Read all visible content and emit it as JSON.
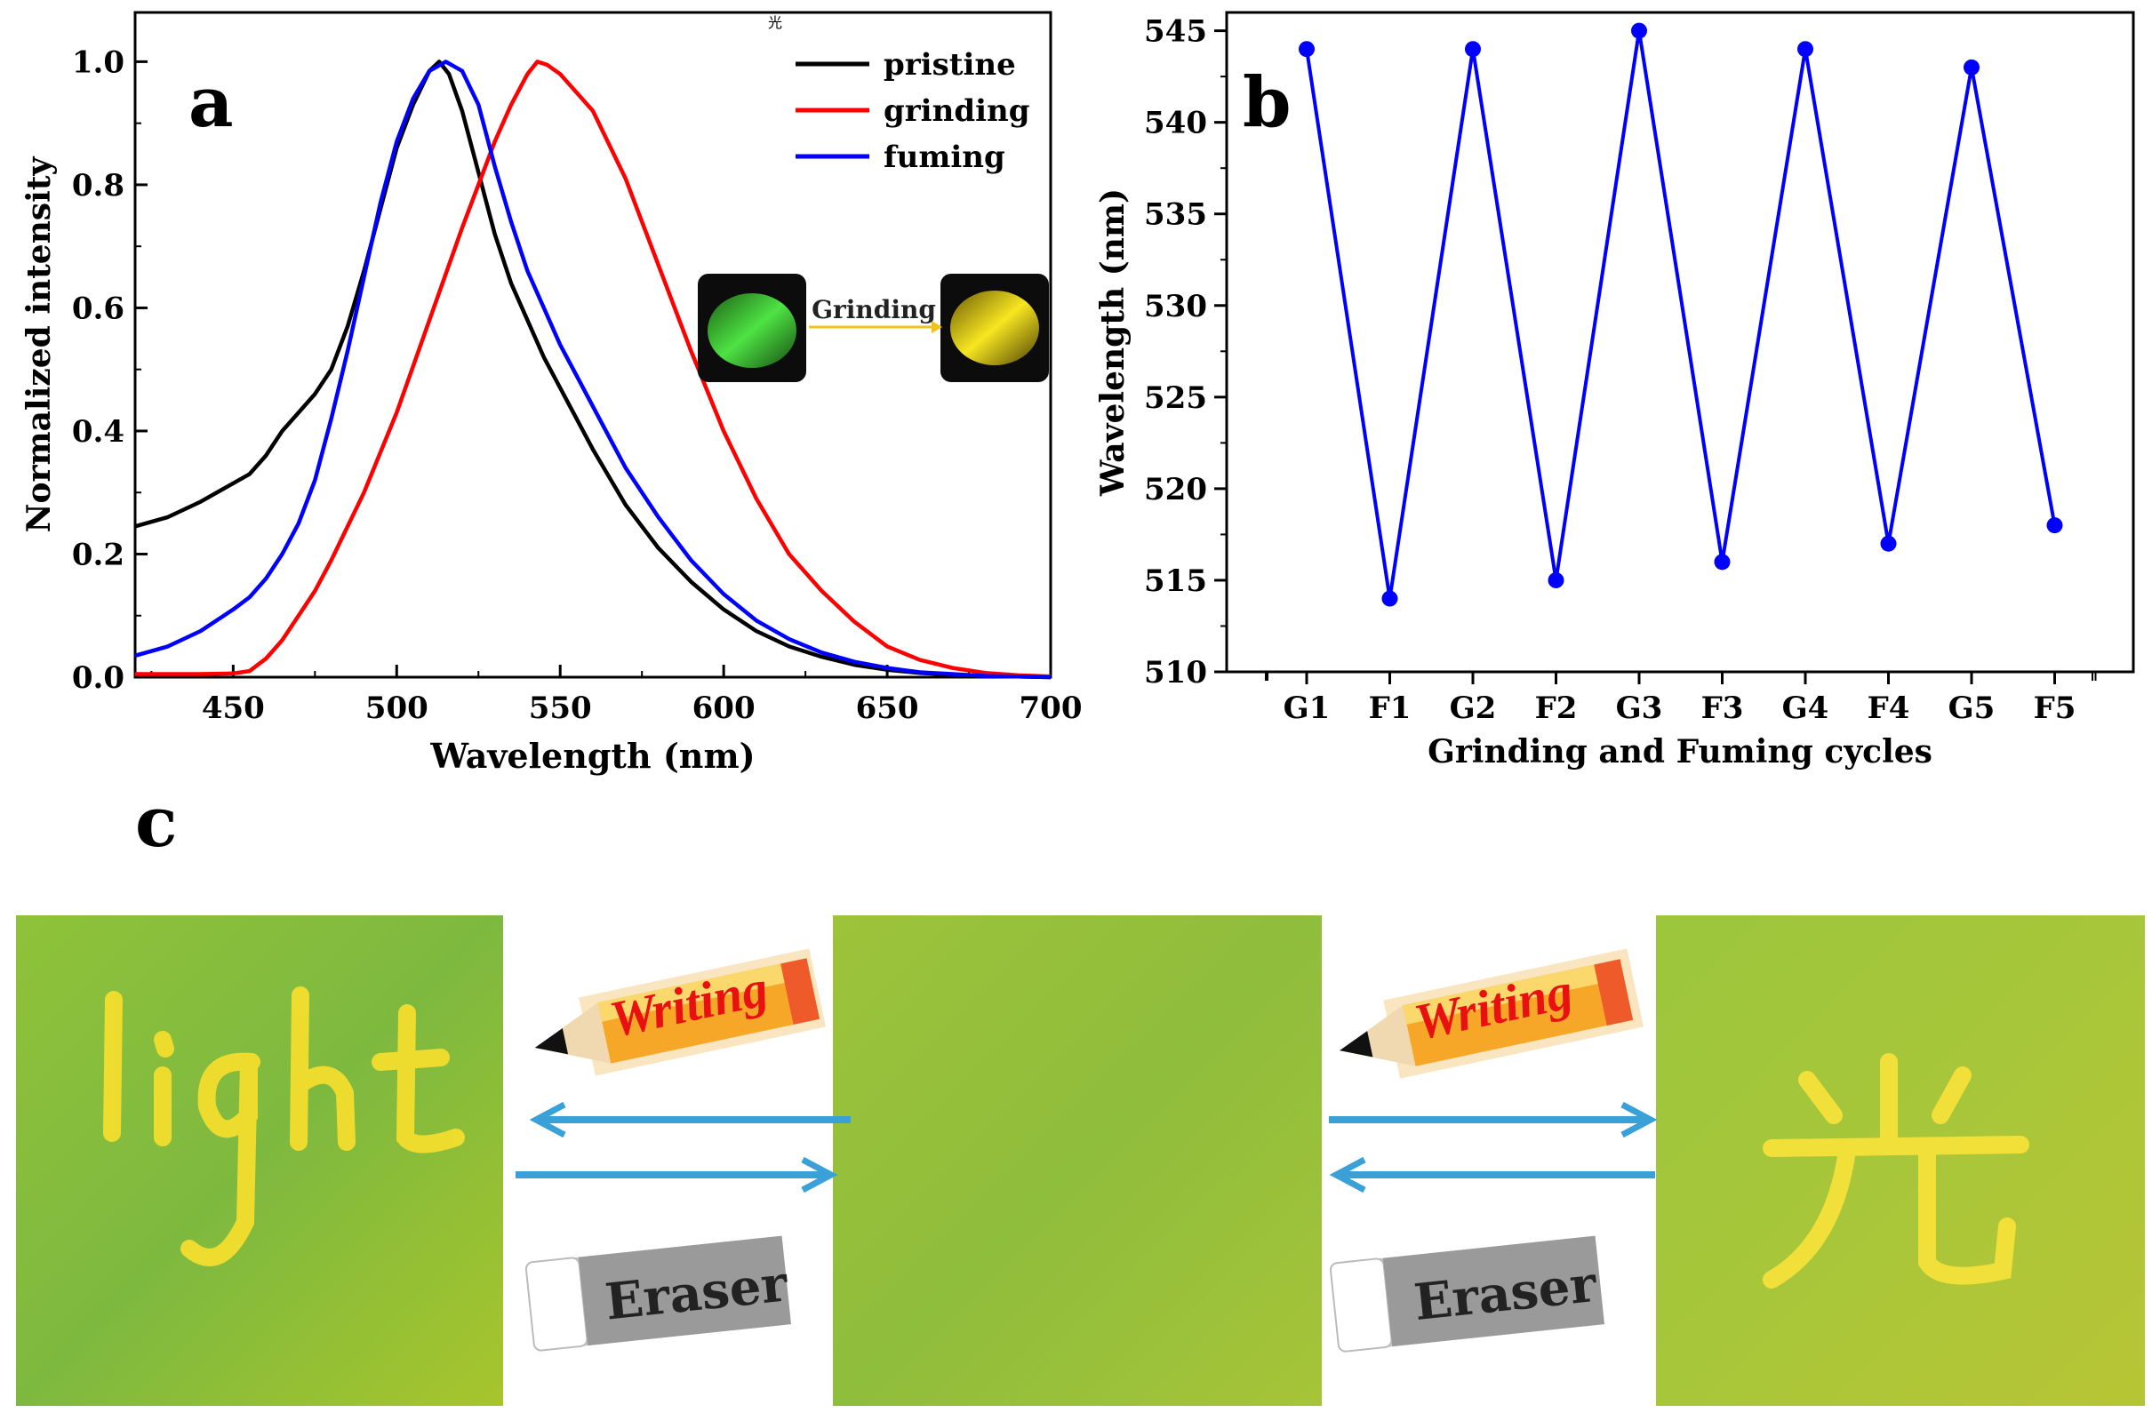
{
  "panels": {
    "a_label": "a",
    "b_label": "b",
    "c_label": "c"
  },
  "chart_data": [
    {
      "panel": "a",
      "type": "line",
      "xlabel": "Wavelength (nm)",
      "ylabel": "Normalized intensity",
      "xlim": [
        420,
        700
      ],
      "ylim": [
        0.0,
        1.08
      ],
      "xticks": [
        450,
        500,
        550,
        600,
        650,
        700
      ],
      "yticks": [
        0.0,
        0.2,
        0.4,
        0.6,
        0.8,
        1.0
      ],
      "legend_position": "top-right",
      "series": [
        {
          "name": "pristine",
          "color": "#000000",
          "x": [
            420,
            430,
            440,
            450,
            455,
            460,
            465,
            470,
            475,
            480,
            485,
            490,
            495,
            500,
            505,
            510,
            513,
            516,
            520,
            525,
            530,
            535,
            540,
            545,
            550,
            555,
            560,
            570,
            580,
            590,
            600,
            610,
            620,
            630,
            640,
            650,
            660,
            670,
            680,
            690,
            700
          ],
          "y": [
            0.245,
            0.26,
            0.285,
            0.315,
            0.33,
            0.36,
            0.4,
            0.43,
            0.46,
            0.5,
            0.57,
            0.66,
            0.76,
            0.86,
            0.93,
            0.985,
            1.0,
            0.98,
            0.92,
            0.82,
            0.72,
            0.64,
            0.58,
            0.52,
            0.47,
            0.42,
            0.37,
            0.28,
            0.21,
            0.155,
            0.11,
            0.075,
            0.05,
            0.033,
            0.02,
            0.012,
            0.007,
            0.004,
            0.002,
            0.001,
            0.0
          ]
        },
        {
          "name": "grinding",
          "color": "#ff0000",
          "x": [
            420,
            440,
            450,
            455,
            460,
            465,
            470,
            475,
            480,
            490,
            500,
            510,
            520,
            530,
            535,
            540,
            543,
            546,
            550,
            560,
            570,
            580,
            590,
            600,
            610,
            620,
            630,
            640,
            650,
            660,
            670,
            680,
            690,
            700
          ],
          "y": [
            0.005,
            0.005,
            0.006,
            0.01,
            0.03,
            0.06,
            0.1,
            0.14,
            0.19,
            0.3,
            0.43,
            0.58,
            0.73,
            0.87,
            0.93,
            0.98,
            1.0,
            0.995,
            0.98,
            0.92,
            0.81,
            0.67,
            0.53,
            0.4,
            0.29,
            0.2,
            0.14,
            0.09,
            0.05,
            0.028,
            0.015,
            0.007,
            0.003,
            0.001
          ]
        },
        {
          "name": "fuming",
          "color": "#0000ff",
          "x": [
            420,
            430,
            440,
            450,
            455,
            460,
            465,
            470,
            475,
            480,
            485,
            490,
            495,
            500,
            505,
            510,
            515,
            520,
            525,
            530,
            535,
            540,
            545,
            550,
            555,
            560,
            570,
            580,
            590,
            600,
            610,
            620,
            630,
            640,
            650,
            660,
            670,
            680,
            690,
            700
          ],
          "y": [
            0.035,
            0.05,
            0.075,
            0.11,
            0.13,
            0.16,
            0.2,
            0.25,
            0.32,
            0.42,
            0.53,
            0.65,
            0.77,
            0.87,
            0.94,
            0.985,
            1.0,
            0.985,
            0.93,
            0.83,
            0.74,
            0.66,
            0.6,
            0.54,
            0.49,
            0.44,
            0.34,
            0.26,
            0.19,
            0.135,
            0.092,
            0.062,
            0.04,
            0.025,
            0.015,
            0.008,
            0.005,
            0.002,
            0.001,
            0.0
          ]
        }
      ],
      "inset": {
        "label": "Grinding",
        "from_color": "#3fd63a",
        "to_color": "#f2e21c"
      }
    },
    {
      "panel": "b",
      "type": "line",
      "xlabel": "Grinding and Fuming cycles",
      "ylabel": "Wavelength (nm)",
      "ylim": [
        510,
        546
      ],
      "yticks": [
        510,
        515,
        520,
        525,
        530,
        535,
        540,
        545
      ],
      "categories": [
        "G1",
        "F1",
        "G2",
        "F2",
        "G3",
        "F3",
        "G4",
        "F4",
        "G5",
        "F5"
      ],
      "series": [
        {
          "color": "#0000ff",
          "values": [
            544,
            514,
            544,
            515,
            545,
            516,
            544,
            517,
            543,
            518
          ]
        }
      ]
    }
  ],
  "panel_c": {
    "writing_label": "Writing",
    "eraser_label": "Eraser",
    "left_photo_text": "light",
    "right_photo_text": "光",
    "paper_color": "#9bc43a",
    "ink_color": "#f5e23a",
    "arrow_color": "#3aa0d8"
  }
}
